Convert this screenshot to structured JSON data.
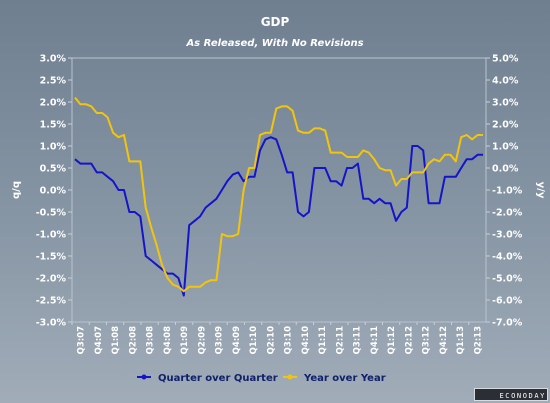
{
  "chart_data": {
    "type": "line",
    "title": "GDP",
    "subtitle": "As Released, With No Revisions",
    "ylabel_left": "q/q",
    "ylabel_right": "y/y",
    "ylim_left": [
      -3.0,
      3.0
    ],
    "ylim_right": [
      -7.0,
      5.0
    ],
    "y_ticks_left": [
      "3.0%",
      "2.5%",
      "2.0%",
      "1.5%",
      "1.0%",
      "0.5%",
      "0.0%",
      "-0.5%",
      "-1.0%",
      "-1.5%",
      "-2.0%",
      "-2.5%",
      "-3.0%"
    ],
    "y_ticks_right": [
      "5.0%",
      "4.0%",
      "3.0%",
      "2.0%",
      "1.0%",
      "0.0%",
      "-1.0%",
      "-2.0%",
      "-3.0%",
      "-4.0%",
      "-5.0%",
      "-6.0%",
      "-7.0%"
    ],
    "x_tick_labels": [
      "Q3:07",
      "Q4:07",
      "Q1:08",
      "Q2:08",
      "Q3:08",
      "Q4:08",
      "Q1:09",
      "Q2:09",
      "Q3:09",
      "Q4:09",
      "Q1:10",
      "Q2:10",
      "Q3:10",
      "Q4:10",
      "Q1:11",
      "Q2:11",
      "Q3:11",
      "Q4:11",
      "Q1:12",
      "Q2:12",
      "Q3:12",
      "Q4:12",
      "Q1:13",
      "Q2:13"
    ],
    "legend_position": "bottom",
    "grid": false,
    "series": [
      {
        "name": "Quarter over Quarter",
        "axis": "left",
        "color": "#1515c8",
        "values": [
          0.7,
          0.6,
          0.6,
          0.6,
          0.4,
          0.4,
          0.3,
          0.2,
          0.0,
          0.0,
          -0.5,
          -0.5,
          -0.6,
          -1.5,
          -1.6,
          -1.7,
          -1.8,
          -1.9,
          -1.9,
          -2.0,
          -2.4,
          -0.8,
          -0.7,
          -0.6,
          -0.4,
          -0.3,
          -0.2,
          0.0,
          0.2,
          0.35,
          0.4,
          0.2,
          0.3,
          0.3,
          0.9,
          1.15,
          1.2,
          1.15,
          0.8,
          0.4,
          0.4,
          -0.5,
          -0.6,
          -0.5,
          0.5,
          0.5,
          0.5,
          0.2,
          0.2,
          0.1,
          0.5,
          0.5,
          0.6,
          -0.2,
          -0.2,
          -0.3,
          -0.2,
          -0.3,
          -0.3,
          -0.7,
          -0.5,
          -0.4,
          1.0,
          1.0,
          0.9,
          -0.3,
          -0.3,
          -0.3,
          0.3,
          0.3,
          0.3,
          0.5,
          0.7,
          0.7,
          0.8,
          0.8
        ]
      },
      {
        "name": "Year over Year",
        "axis": "right",
        "color": "#f2c50c",
        "values": [
          3.2,
          2.9,
          2.9,
          2.8,
          2.5,
          2.5,
          2.3,
          1.6,
          1.4,
          1.5,
          0.3,
          0.3,
          0.3,
          -1.8,
          -2.7,
          -3.5,
          -4.4,
          -5.0,
          -5.3,
          -5.4,
          -5.6,
          -5.4,
          -5.4,
          -5.4,
          -5.2,
          -5.1,
          -5.1,
          -3.0,
          -3.1,
          -3.1,
          -3.0,
          -1.0,
          0.0,
          0.0,
          1.5,
          1.6,
          1.6,
          2.7,
          2.8,
          2.8,
          2.6,
          1.7,
          1.6,
          1.6,
          1.8,
          1.8,
          1.7,
          0.7,
          0.7,
          0.7,
          0.5,
          0.5,
          0.5,
          0.8,
          0.7,
          0.4,
          0.0,
          -0.1,
          -0.1,
          -0.8,
          -0.5,
          -0.5,
          -0.2,
          -0.2,
          -0.2,
          0.2,
          0.4,
          0.3,
          0.6,
          0.6,
          0.3,
          1.4,
          1.5,
          1.3,
          1.5,
          1.5
        ]
      }
    ]
  },
  "brand": "ECONODAY"
}
